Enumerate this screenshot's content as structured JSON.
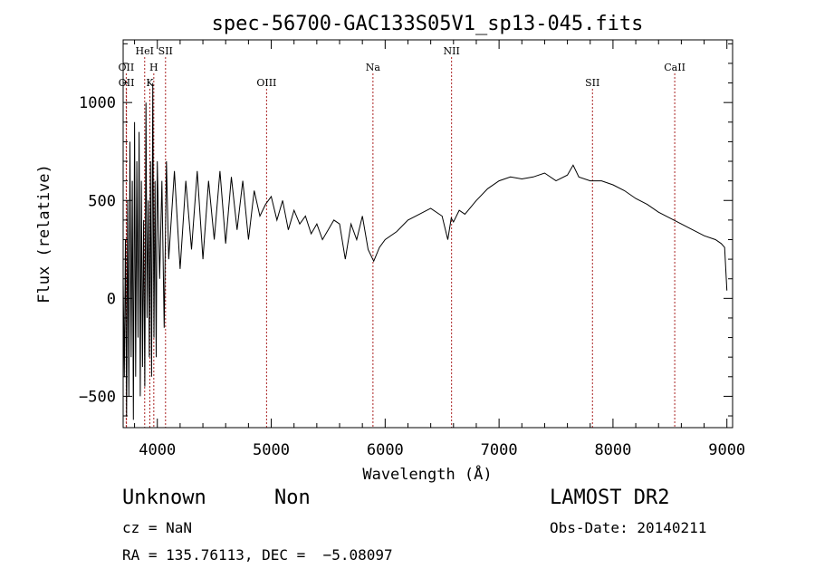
{
  "chart_data": {
    "type": "line",
    "title": "spec-56700-GAC133S05V1_sp13-045.fits",
    "xlabel": "Wavelength (Å)",
    "ylabel": "Flux (relative)",
    "xlim": [
      3700,
      9050
    ],
    "ylim": [
      -660,
      1320
    ],
    "x_ticks": [
      4000,
      5000,
      6000,
      7000,
      8000,
      9000
    ],
    "x_tick_labels": [
      "4000",
      "5000",
      "6000",
      "7000",
      "8000",
      "9000"
    ],
    "y_ticks": [
      -500,
      0,
      500,
      1000
    ],
    "y_tick_labels": [
      "−500",
      "0",
      "500",
      "1000"
    ],
    "x_minor_step": 200,
    "y_minor_step": 100,
    "grid": false,
    "series": [
      {
        "color": "#000000",
        "x": [
          3700,
          3710,
          3720,
          3730,
          3740,
          3750,
          3760,
          3770,
          3780,
          3790,
          3800,
          3810,
          3820,
          3830,
          3840,
          3850,
          3860,
          3870,
          3880,
          3890,
          3900,
          3910,
          3920,
          3930,
          3940,
          3950,
          3960,
          3970,
          3980,
          3990,
          4000,
          4020,
          4040,
          4060,
          4080,
          4100,
          4150,
          4200,
          4250,
          4300,
          4350,
          4400,
          4450,
          4500,
          4550,
          4600,
          4650,
          4700,
          4750,
          4800,
          4850,
          4900,
          4950,
          5000,
          5050,
          5100,
          5150,
          5200,
          5250,
          5300,
          5350,
          5400,
          5450,
          5500,
          5550,
          5600,
          5650,
          5700,
          5750,
          5800,
          5850,
          5900,
          5950,
          6000,
          6100,
          6200,
          6300,
          6400,
          6500,
          6550,
          6580,
          6600,
          6650,
          6700,
          6800,
          6900,
          7000,
          7100,
          7200,
          7300,
          7400,
          7500,
          7600,
          7650,
          7700,
          7800,
          7900,
          8000,
          8100,
          8200,
          8300,
          8400,
          8500,
          8600,
          8700,
          8800,
          8900,
          8950,
          8980,
          9000
        ],
        "y": [
          100,
          -400,
          300,
          -600,
          500,
          -500,
          800,
          -300,
          600,
          -620,
          900,
          -400,
          700,
          -200,
          850,
          -500,
          600,
          -350,
          400,
          -450,
          1000,
          -100,
          500,
          -300,
          700,
          -400,
          1100,
          -200,
          600,
          -300,
          700,
          100,
          600,
          -150,
          700,
          200,
          650,
          150,
          600,
          250,
          650,
          200,
          600,
          300,
          650,
          280,
          620,
          350,
          600,
          300,
          550,
          420,
          480,
          520,
          400,
          500,
          350,
          450,
          380,
          420,
          330,
          380,
          300,
          350,
          400,
          380,
          200,
          380,
          300,
          420,
          250,
          190,
          260,
          300,
          340,
          400,
          430,
          460,
          420,
          300,
          410,
          390,
          450,
          430,
          500,
          560,
          600,
          620,
          610,
          620,
          640,
          600,
          630,
          680,
          620,
          600,
          600,
          580,
          550,
          510,
          480,
          440,
          410,
          380,
          350,
          320,
          300,
          280,
          260,
          40
        ],
        "values": [
          100,
          -400,
          300,
          -600,
          500,
          -500,
          800,
          -300,
          600,
          -620,
          900,
          -400,
          700,
          -200,
          850,
          -500,
          600,
          -350,
          400,
          -450,
          1000,
          -100,
          500,
          -300,
          700,
          -400,
          1100,
          -200,
          600,
          -300,
          700,
          100,
          600,
          -150,
          700,
          200,
          650,
          150,
          600,
          250,
          650,
          200,
          600,
          300,
          650,
          280,
          620,
          350,
          600,
          300,
          550,
          420,
          480,
          520,
          400,
          500,
          350,
          450,
          380,
          420,
          330,
          380,
          300,
          350,
          400,
          380,
          200,
          380,
          300,
          420,
          250,
          190,
          260,
          300,
          340,
          400,
          430,
          460,
          420,
          300,
          410,
          390,
          450,
          430,
          500,
          560,
          600,
          620,
          610,
          620,
          640,
          600,
          630,
          680,
          620,
          600,
          600,
          580,
          550,
          510,
          480,
          440,
          410,
          380,
          350,
          320,
          300,
          280,
          260,
          40
        ]
      }
    ],
    "line_markers": [
      {
        "label": "OII",
        "wavelength": 3727,
        "row": 2
      },
      {
        "label": "OII",
        "wavelength": 3729,
        "row": 3
      },
      {
        "label": "HeI",
        "wavelength": 3889,
        "row": 1
      },
      {
        "label": "H",
        "wavelength": 3969,
        "row": 2
      },
      {
        "label": "K",
        "wavelength": 3934,
        "row": 3
      },
      {
        "label": "SII",
        "wavelength": 4072,
        "row": 1
      },
      {
        "label": "OIII",
        "wavelength": 4959,
        "row": 3
      },
      {
        "label": "Na",
        "wavelength": 5893,
        "row": 2
      },
      {
        "label": "NII",
        "wavelength": 6583,
        "row": 1
      },
      {
        "label": "SII",
        "wavelength": 7820,
        "row": 3
      },
      {
        "label": "CaII",
        "wavelength": 8542,
        "row": 2
      }
    ],
    "marker_color": "#aa2222"
  },
  "footer": {
    "object_class": "Unknown",
    "object_subclass": "Non",
    "cz": "cz = NaN",
    "coords": "RA = 135.76113, DEC =  −5.08097",
    "survey": "LAMOST DR2",
    "obs_date": "Obs-Date: 20140211"
  }
}
